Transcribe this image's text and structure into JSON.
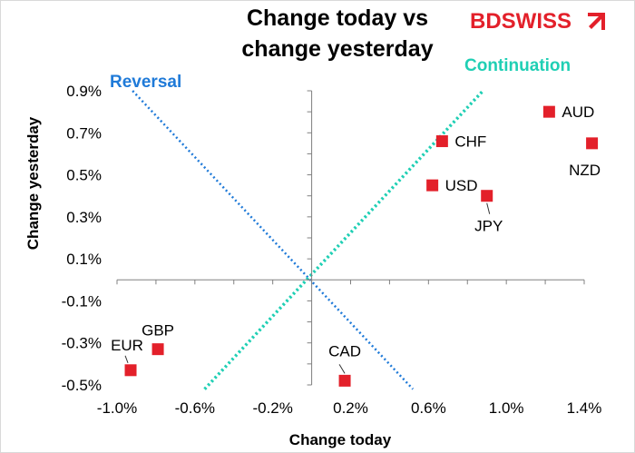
{
  "logo": {
    "text": "BDSWISS",
    "color": "#e3202a"
  },
  "colors": {
    "point": "#e3202a",
    "reversal": "#1f7ad8",
    "continuation": "#1fcfb4",
    "axis": "#808080"
  },
  "chart_data": {
    "type": "scatter",
    "title_lines": [
      "Change today vs",
      "change yesterday"
    ],
    "xlabel": "Change today",
    "ylabel": "Change yesterday",
    "xlim": [
      -1.0,
      1.4
    ],
    "ylim": [
      -0.5,
      0.9
    ],
    "x_ticks": [
      "-1.0%",
      "-0.6%",
      "-0.2%",
      "0.2%",
      "0.6%",
      "1.0%",
      "1.4%"
    ],
    "y_ticks": [
      "0.9%",
      "0.7%",
      "0.5%",
      "0.3%",
      "0.1%",
      "-0.1%",
      "-0.3%",
      "-0.5%"
    ],
    "grid": false,
    "points": [
      {
        "label": "AUD",
        "x": 1.22,
        "y": 0.8
      },
      {
        "label": "NZD",
        "x": 1.44,
        "y": 0.65
      },
      {
        "label": "CHF",
        "x": 0.67,
        "y": 0.66
      },
      {
        "label": "USD",
        "x": 0.62,
        "y": 0.45
      },
      {
        "label": "JPY",
        "x": 0.9,
        "y": 0.4
      },
      {
        "label": "GBP",
        "x": -0.79,
        "y": -0.33
      },
      {
        "label": "EUR",
        "x": -0.93,
        "y": -0.43
      },
      {
        "label": "CAD",
        "x": 0.17,
        "y": -0.48
      }
    ],
    "annotations": [
      "Reversal",
      "Continuation"
    ]
  }
}
